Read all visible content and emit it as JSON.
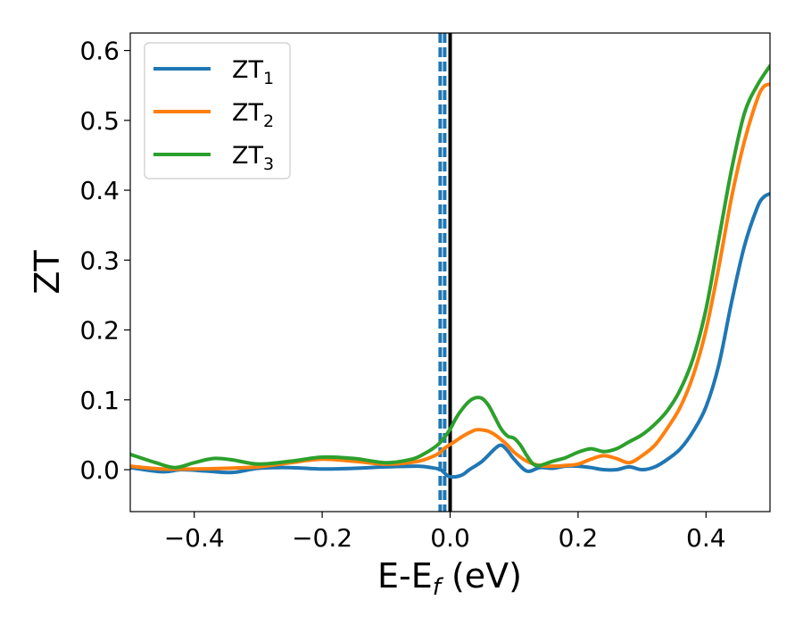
{
  "chart_data": {
    "type": "line",
    "title": "",
    "xlabel": {
      "main": "E-E",
      "sub": "f",
      "rest": " (eV)"
    },
    "ylabel": "ZT",
    "xlim": [
      -0.5,
      0.5
    ],
    "ylim": [
      -0.06,
      0.625
    ],
    "x_ticks": [
      -0.4,
      -0.2,
      0.0,
      0.2,
      0.4
    ],
    "x_tick_labels": [
      "−0.4",
      "−0.2",
      "0.0",
      "0.2",
      "0.4"
    ],
    "y_ticks": [
      0.0,
      0.1,
      0.2,
      0.3,
      0.4,
      0.5,
      0.6
    ],
    "y_tick_labels": [
      "0.0",
      "0.1",
      "0.2",
      "0.3",
      "0.4",
      "0.5",
      "0.6"
    ],
    "grid": false,
    "legend_position": "top-left",
    "vertical_lines": [
      {
        "x": 0.0,
        "style": "solid",
        "color": "#000000"
      },
      {
        "x": -0.0155,
        "style": "dashed",
        "color": "#1f77b4"
      },
      {
        "x": -0.0085,
        "style": "dashed",
        "color": "#1f77b4"
      }
    ],
    "series": [
      {
        "label_main": "ZT",
        "label_sub": "1",
        "color": "#1f77b4",
        "x": [
          -0.5,
          -0.45,
          -0.42,
          -0.38,
          -0.34,
          -0.3,
          -0.25,
          -0.2,
          -0.15,
          -0.1,
          -0.05,
          -0.03,
          -0.015,
          -0.005,
          0.0,
          0.01,
          0.02,
          0.03,
          0.05,
          0.07,
          0.08,
          0.09,
          0.1,
          0.12,
          0.14,
          0.16,
          0.18,
          0.2,
          0.22,
          0.24,
          0.26,
          0.28,
          0.3,
          0.32,
          0.34,
          0.36,
          0.38,
          0.4,
          0.42,
          0.44,
          0.46,
          0.48,
          0.49,
          0.5
        ],
        "y": [
          0.003,
          -0.003,
          0.0,
          -0.002,
          -0.004,
          0.002,
          0.003,
          0.001,
          0.002,
          0.004,
          0.005,
          0.003,
          0.0,
          -0.008,
          -0.01,
          -0.01,
          -0.007,
          0.0,
          0.012,
          0.03,
          0.035,
          0.027,
          0.015,
          -0.002,
          0.003,
          0.002,
          0.005,
          0.005,
          0.003,
          0.0,
          0.0,
          0.004,
          0.0,
          0.004,
          0.015,
          0.03,
          0.055,
          0.09,
          0.15,
          0.24,
          0.32,
          0.375,
          0.39,
          0.395
        ]
      },
      {
        "label_main": "ZT",
        "label_sub": "2",
        "color": "#ff7f0e",
        "x": [
          -0.5,
          -0.45,
          -0.4,
          -0.35,
          -0.3,
          -0.25,
          -0.2,
          -0.15,
          -0.1,
          -0.05,
          -0.02,
          -0.01,
          0.0,
          0.01,
          0.02,
          0.03,
          0.04,
          0.05,
          0.06,
          0.07,
          0.08,
          0.09,
          0.1,
          0.12,
          0.14,
          0.16,
          0.18,
          0.2,
          0.22,
          0.24,
          0.26,
          0.28,
          0.3,
          0.32,
          0.34,
          0.36,
          0.38,
          0.4,
          0.42,
          0.44,
          0.46,
          0.48,
          0.49,
          0.5
        ],
        "y": [
          0.005,
          0.001,
          0.001,
          0.002,
          0.004,
          0.01,
          0.015,
          0.012,
          0.008,
          0.012,
          0.022,
          0.03,
          0.036,
          0.042,
          0.048,
          0.053,
          0.057,
          0.057,
          0.055,
          0.05,
          0.043,
          0.035,
          0.025,
          0.012,
          0.006,
          0.005,
          0.006,
          0.008,
          0.015,
          0.02,
          0.016,
          0.01,
          0.02,
          0.035,
          0.06,
          0.09,
          0.135,
          0.2,
          0.29,
          0.39,
          0.47,
          0.53,
          0.548,
          0.552
        ]
      },
      {
        "label_main": "ZT",
        "label_sub": "3",
        "color": "#2ca02c",
        "x": [
          -0.5,
          -0.46,
          -0.43,
          -0.4,
          -0.37,
          -0.34,
          -0.3,
          -0.25,
          -0.2,
          -0.15,
          -0.1,
          -0.06,
          -0.04,
          -0.02,
          -0.01,
          0.0,
          0.01,
          0.02,
          0.03,
          0.04,
          0.05,
          0.06,
          0.07,
          0.08,
          0.09,
          0.1,
          0.11,
          0.12,
          0.13,
          0.14,
          0.16,
          0.18,
          0.2,
          0.22,
          0.24,
          0.26,
          0.28,
          0.3,
          0.32,
          0.34,
          0.36,
          0.38,
          0.4,
          0.42,
          0.44,
          0.46,
          0.48,
          0.5
        ],
        "y": [
          0.022,
          0.01,
          0.003,
          0.01,
          0.016,
          0.014,
          0.008,
          0.012,
          0.018,
          0.016,
          0.01,
          0.015,
          0.023,
          0.035,
          0.045,
          0.058,
          0.075,
          0.088,
          0.098,
          0.103,
          0.102,
          0.092,
          0.075,
          0.058,
          0.048,
          0.045,
          0.035,
          0.02,
          0.008,
          0.006,
          0.012,
          0.017,
          0.025,
          0.03,
          0.026,
          0.03,
          0.04,
          0.05,
          0.065,
          0.085,
          0.115,
          0.16,
          0.23,
          0.33,
          0.43,
          0.51,
          0.55,
          0.578
        ]
      }
    ]
  }
}
